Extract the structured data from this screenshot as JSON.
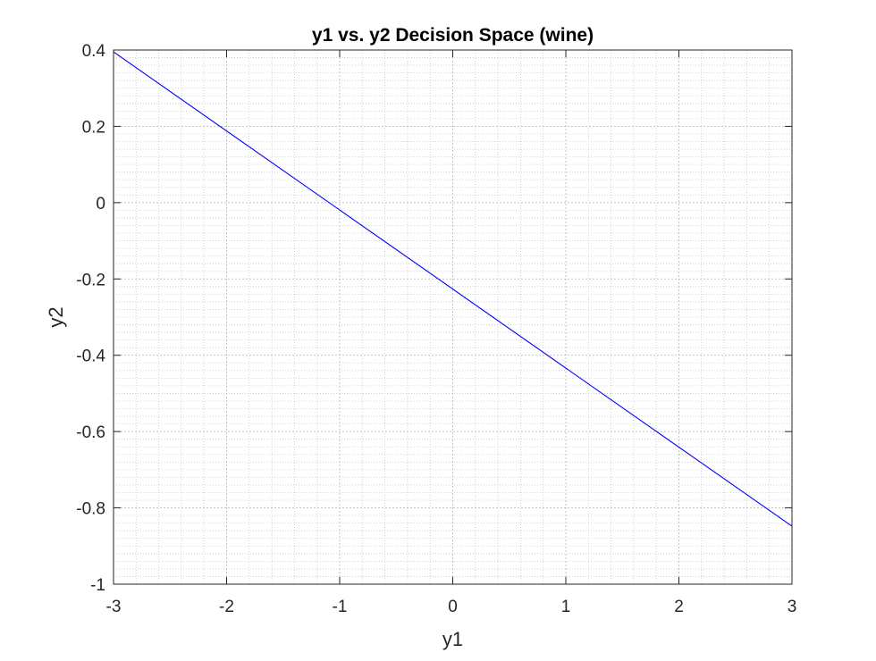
{
  "chart_data": {
    "type": "line",
    "title": "y1 vs. y2 Decision Space (wine)",
    "xlabel": "y1",
    "ylabel": "y2",
    "xlim": [
      -3,
      3
    ],
    "ylim": [
      -1,
      0.4
    ],
    "xticks": [
      -3,
      -2,
      -1,
      0,
      1,
      2,
      3
    ],
    "yticks": [
      -1,
      -0.8,
      -0.6,
      -0.4,
      -0.2,
      0,
      0.2,
      0.4
    ],
    "x_minor_step": 0.2,
    "y_minor_step": 0.02,
    "grid": true,
    "minor_grid": true,
    "series": [
      {
        "x": [
          -3,
          3
        ],
        "y": [
          0.395,
          -0.848
        ],
        "color": "#0000ff"
      }
    ]
  }
}
